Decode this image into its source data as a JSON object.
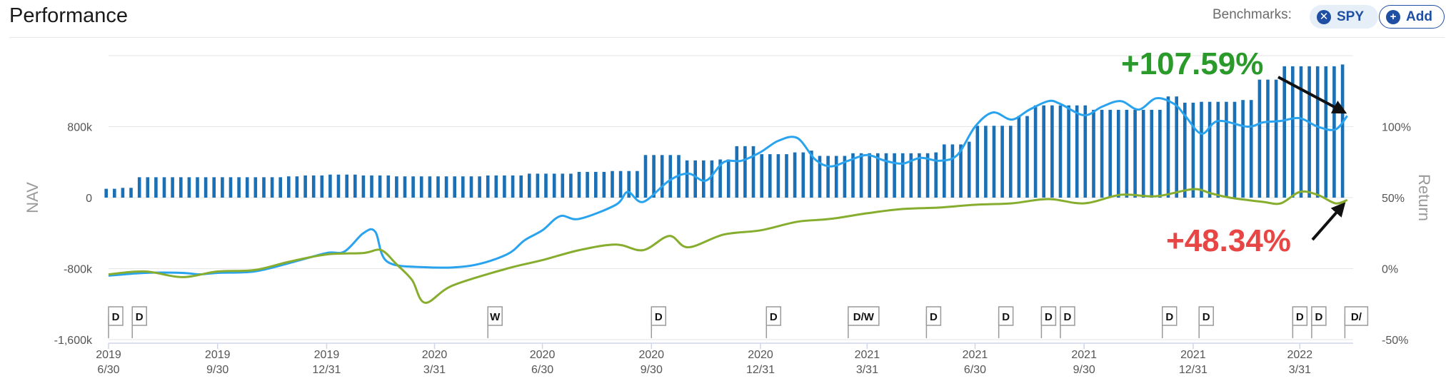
{
  "header": {
    "title": "Performance",
    "benchmarks_label": "Benchmarks:",
    "spy_label": "SPY",
    "add_label": "Add"
  },
  "colors": {
    "nav_bars": "#1a6fb5",
    "portfolio_line": "#2aa3ef",
    "benchmark_line": "#86ad2e",
    "portfolio_annotation": "#2a9a2a",
    "benchmark_annotation": "#e84545",
    "accent": "#1f4fa3"
  },
  "chart_data": {
    "type": "bar+line",
    "left_axis": {
      "label": "NAV",
      "ticks": [
        {
          "value": 800000,
          "label": "800k"
        },
        {
          "value": 0,
          "label": "0"
        },
        {
          "value": -800000,
          "label": "-800k"
        },
        {
          "value": -1600000,
          "label": "-1,600k"
        }
      ],
      "range": [
        -1600000,
        1600000
      ]
    },
    "right_axis": {
      "label": "Return",
      "ticks": [
        {
          "value": 100,
          "label": "100%"
        },
        {
          "value": 50,
          "label": "50%"
        },
        {
          "value": 0,
          "label": "0%"
        },
        {
          "value": -50,
          "label": "-50%"
        }
      ],
      "range": [
        -50,
        150
      ]
    },
    "x_range": [
      "2019-06-30",
      "2022-05-15"
    ],
    "x_ticks": [
      {
        "date": "2019-06-30",
        "year": "2019",
        "md": "6/30"
      },
      {
        "date": "2019-09-30",
        "year": "2019",
        "md": "9/30"
      },
      {
        "date": "2019-12-31",
        "year": "2019",
        "md": "12/31"
      },
      {
        "date": "2020-03-31",
        "year": "2020",
        "md": "3/31"
      },
      {
        "date": "2020-06-30",
        "year": "2020",
        "md": "6/30"
      },
      {
        "date": "2020-09-30",
        "year": "2020",
        "md": "9/30"
      },
      {
        "date": "2020-12-31",
        "year": "2020",
        "md": "12/31"
      },
      {
        "date": "2021-03-31",
        "year": "2021",
        "md": "3/31"
      },
      {
        "date": "2021-06-30",
        "year": "2021",
        "md": "6/30"
      },
      {
        "date": "2021-09-30",
        "year": "2021",
        "md": "9/30"
      },
      {
        "date": "2021-12-31",
        "year": "2021",
        "md": "12/31"
      },
      {
        "date": "2022-03-31",
        "year": "2022",
        "md": "3/31"
      }
    ],
    "nav_bars": {
      "name": "NAV",
      "points": [
        [
          "2019-06-28",
          100000
        ],
        [
          "2019-07-12",
          110000
        ],
        [
          "2019-07-26",
          230000
        ],
        [
          "2019-08-16",
          230000
        ],
        [
          "2019-09-27",
          230000
        ],
        [
          "2019-11-29",
          240000
        ],
        [
          "2019-12-13",
          250000
        ],
        [
          "2019-12-31",
          260000
        ],
        [
          "2020-01-31",
          250000
        ],
        [
          "2020-02-28",
          240000
        ],
        [
          "2020-04-30",
          240000
        ],
        [
          "2020-05-15",
          250000
        ],
        [
          "2020-06-19",
          270000
        ],
        [
          "2020-07-31",
          290000
        ],
        [
          "2020-08-28",
          300000
        ],
        [
          "2020-09-11",
          300000
        ],
        [
          "2020-09-25",
          480000
        ],
        [
          "2020-10-30",
          420000
        ],
        [
          "2020-11-27",
          430000
        ],
        [
          "2020-12-11",
          580000
        ],
        [
          "2020-12-31",
          490000
        ],
        [
          "2021-01-29",
          510000
        ],
        [
          "2021-02-12",
          530000
        ],
        [
          "2021-02-19",
          470000
        ],
        [
          "2021-03-19",
          500000
        ],
        [
          "2021-04-30",
          500000
        ],
        [
          "2021-05-28",
          510000
        ],
        [
          "2021-06-04",
          600000
        ],
        [
          "2021-06-25",
          630000
        ],
        [
          "2021-07-02",
          810000
        ],
        [
          "2021-08-06",
          920000
        ],
        [
          "2021-08-20",
          1040000
        ],
        [
          "2021-09-17",
          1040000
        ],
        [
          "2021-10-08",
          990000
        ],
        [
          "2021-11-05",
          990000
        ],
        [
          "2021-12-10",
          1140000
        ],
        [
          "2021-12-24",
          1070000
        ],
        [
          "2022-01-07",
          1080000
        ],
        [
          "2022-02-11",
          1100000
        ],
        [
          "2022-02-25",
          1330000
        ],
        [
          "2022-03-18",
          1480000
        ],
        [
          "2022-04-29",
          1480000
        ],
        [
          "2022-05-06",
          1500000
        ]
      ]
    },
    "series": [
      {
        "name": "Portfolio",
        "points": [
          [
            "2019-06-30",
            -5
          ],
          [
            "2019-07-31",
            -3
          ],
          [
            "2019-08-31",
            -3
          ],
          [
            "2019-09-15",
            -4
          ],
          [
            "2019-09-30",
            -3
          ],
          [
            "2019-10-31",
            -2
          ],
          [
            "2019-11-30",
            4
          ],
          [
            "2019-12-31",
            11
          ],
          [
            "2020-01-15",
            12
          ],
          [
            "2020-01-31",
            25
          ],
          [
            "2020-02-10",
            26
          ],
          [
            "2020-02-20",
            5
          ],
          [
            "2020-03-23",
            1
          ],
          [
            "2020-04-30",
            2
          ],
          [
            "2020-05-31",
            10
          ],
          [
            "2020-06-15",
            20
          ],
          [
            "2020-06-30",
            27
          ],
          [
            "2020-07-15",
            37
          ],
          [
            "2020-07-31",
            35
          ],
          [
            "2020-08-31",
            45
          ],
          [
            "2020-09-10",
            54
          ],
          [
            "2020-09-23",
            47
          ],
          [
            "2020-10-15",
            62
          ],
          [
            "2020-10-31",
            67
          ],
          [
            "2020-11-15",
            62
          ],
          [
            "2020-11-30",
            75
          ],
          [
            "2020-12-15",
            76
          ],
          [
            "2020-12-31",
            82
          ],
          [
            "2021-01-15",
            90
          ],
          [
            "2021-01-31",
            92
          ],
          [
            "2021-02-15",
            77
          ],
          [
            "2021-02-28",
            72
          ],
          [
            "2021-03-15",
            76
          ],
          [
            "2021-03-31",
            80
          ],
          [
            "2021-04-15",
            76
          ],
          [
            "2021-04-30",
            74
          ],
          [
            "2021-05-15",
            78
          ],
          [
            "2021-05-31",
            76
          ],
          [
            "2021-06-15",
            80
          ],
          [
            "2021-06-30",
            100
          ],
          [
            "2021-07-15",
            110
          ],
          [
            "2021-07-31",
            105
          ],
          [
            "2021-08-15",
            112
          ],
          [
            "2021-08-31",
            118
          ],
          [
            "2021-09-10",
            116
          ],
          [
            "2021-09-30",
            108
          ],
          [
            "2021-10-15",
            114
          ],
          [
            "2021-10-31",
            118
          ],
          [
            "2021-11-15",
            112
          ],
          [
            "2021-11-30",
            120
          ],
          [
            "2021-12-15",
            116
          ],
          [
            "2021-12-24",
            108
          ],
          [
            "2022-01-07",
            95
          ],
          [
            "2022-01-21",
            104
          ],
          [
            "2022-02-15",
            100
          ],
          [
            "2022-02-28",
            103
          ],
          [
            "2022-03-15",
            104
          ],
          [
            "2022-03-31",
            106
          ],
          [
            "2022-04-15",
            100
          ],
          [
            "2022-04-30",
            98
          ],
          [
            "2022-05-10",
            107.59
          ]
        ]
      },
      {
        "name": "SPY",
        "points": [
          [
            "2019-06-30",
            -4
          ],
          [
            "2019-07-31",
            -2
          ],
          [
            "2019-08-31",
            -6
          ],
          [
            "2019-09-30",
            -2
          ],
          [
            "2019-10-31",
            -1
          ],
          [
            "2019-11-30",
            5
          ],
          [
            "2019-12-31",
            10
          ],
          [
            "2020-01-31",
            11
          ],
          [
            "2020-02-15",
            13
          ],
          [
            "2020-02-28",
            3
          ],
          [
            "2020-03-12",
            -8
          ],
          [
            "2020-03-23",
            -24
          ],
          [
            "2020-04-15",
            -12
          ],
          [
            "2020-05-31",
            0
          ],
          [
            "2020-06-30",
            6
          ],
          [
            "2020-07-31",
            13
          ],
          [
            "2020-08-31",
            17
          ],
          [
            "2020-09-23",
            13
          ],
          [
            "2020-10-15",
            23
          ],
          [
            "2020-10-31",
            15
          ],
          [
            "2020-11-30",
            24
          ],
          [
            "2020-12-31",
            27
          ],
          [
            "2021-01-31",
            33
          ],
          [
            "2021-02-28",
            35
          ],
          [
            "2021-03-31",
            39
          ],
          [
            "2021-04-30",
            42
          ],
          [
            "2021-05-31",
            43
          ],
          [
            "2021-06-30",
            45
          ],
          [
            "2021-07-31",
            46
          ],
          [
            "2021-08-31",
            49
          ],
          [
            "2021-09-30",
            46
          ],
          [
            "2021-10-31",
            52
          ],
          [
            "2021-11-30",
            51
          ],
          [
            "2021-12-31",
            56
          ],
          [
            "2022-01-15",
            53
          ],
          [
            "2022-01-31",
            50
          ],
          [
            "2022-02-28",
            47
          ],
          [
            "2022-03-15",
            46
          ],
          [
            "2022-03-31",
            54
          ],
          [
            "2022-04-15",
            52
          ],
          [
            "2022-04-30",
            46
          ],
          [
            "2022-05-10",
            48.34
          ]
        ]
      }
    ],
    "dividend_markers": [
      {
        "date": "2019-06-30",
        "label": "D"
      },
      {
        "date": "2019-07-20",
        "label": "D"
      },
      {
        "date": "2020-05-15",
        "label": "W"
      },
      {
        "date": "2020-09-30",
        "label": "D"
      },
      {
        "date": "2021-01-05",
        "label": "D"
      },
      {
        "date": "2021-03-15",
        "label": "D/W"
      },
      {
        "date": "2021-05-20",
        "label": "D"
      },
      {
        "date": "2021-07-20",
        "label": "D"
      },
      {
        "date": "2021-08-25",
        "label": "D"
      },
      {
        "date": "2021-09-10",
        "label": "D"
      },
      {
        "date": "2021-12-05",
        "label": "D"
      },
      {
        "date": "2022-01-05",
        "label": "D"
      },
      {
        "date": "2022-03-25",
        "label": "D"
      },
      {
        "date": "2022-04-10",
        "label": "D"
      },
      {
        "date": "2022-05-08",
        "label": "D/"
      }
    ],
    "annotations": [
      {
        "text": "+107.59%",
        "series": "Portfolio",
        "value": 107.59,
        "position": "top-right"
      },
      {
        "text": "+48.34%",
        "series": "SPY",
        "value": 48.34,
        "position": "bottom-right"
      }
    ]
  }
}
